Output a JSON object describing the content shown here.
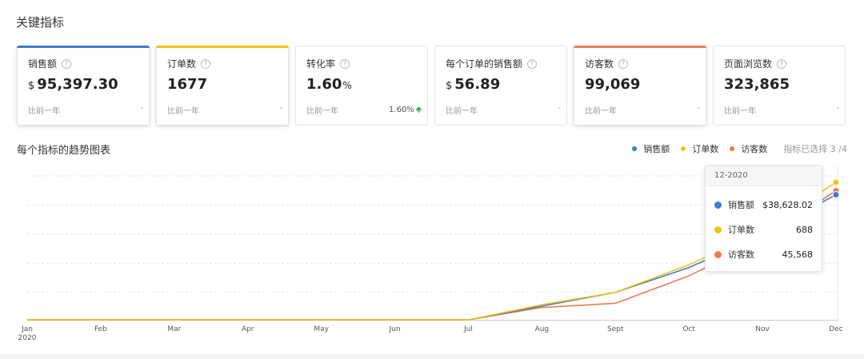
{
  "section_title": "关键指标",
  "cards": [
    {
      "label": "销售额",
      "prefix": "$",
      "value": "95,397.30",
      "suffix": "",
      "compare": "比前一年",
      "delta": "-",
      "accent": "#3f7dd1"
    },
    {
      "label": "订单数",
      "prefix": "",
      "value": "1677",
      "suffix": "",
      "compare": "比前一年",
      "delta": "-",
      "accent": "#f2c316"
    },
    {
      "label": "转化率",
      "prefix": "",
      "value": "1.60",
      "suffix": "%",
      "compare": "比前一年",
      "delta": "1.60%",
      "accent": ""
    },
    {
      "label": "每个订单的销售额",
      "prefix": "$",
      "value": "56.89",
      "suffix": "",
      "compare": "比前一年",
      "delta": "-",
      "accent": ""
    },
    {
      "label": "访客数",
      "prefix": "",
      "value": "99,069",
      "suffix": "",
      "compare": "比前一年",
      "delta": "-",
      "accent": "#ec7b54"
    },
    {
      "label": "页面浏览数",
      "prefix": "",
      "value": "323,865",
      "suffix": "",
      "compare": "比前一年",
      "delta": "-",
      "accent": ""
    }
  ],
  "help_icon": "question-circle-icon",
  "up_arrow_icon": "arrow-up-icon",
  "chart_title": "每个指标的趋势图表",
  "legend": {
    "items": [
      {
        "name": "销售额",
        "color": "#3f7dd1"
      },
      {
        "name": "订单数",
        "color": "#f2c316"
      },
      {
        "name": "访客数",
        "color": "#ec7b54"
      }
    ],
    "note": "指标已选择 3 /4"
  },
  "tooltip": {
    "title": "12-2020",
    "rows": [
      {
        "name": "销售额",
        "value": "$38,628.02",
        "color": "#3f7dd1"
      },
      {
        "name": "订单数",
        "value": "688",
        "color": "#f2c316"
      },
      {
        "name": "访客数",
        "value": "45,568",
        "color": "#ec7b54"
      }
    ]
  },
  "chart_data": {
    "type": "line",
    "x": [
      "Jan",
      "Feb",
      "Mar",
      "Apr",
      "May",
      "Jun",
      "Jul",
      "Aug",
      "Sept",
      "Oct",
      "Nov",
      "Dec"
    ],
    "year_label": "2020",
    "title": "每个指标的趋势图表",
    "grid": true,
    "y_axis_labels_shown": false,
    "normalized_to_peak": true,
    "series": [
      {
        "name": "销售额",
        "color": "#3f7dd1",
        "values": [
          0,
          0,
          0,
          0,
          0,
          0,
          0,
          0.1,
          0.2,
          0.38,
          0.62,
          0.91
        ]
      },
      {
        "name": "订单数",
        "color": "#f2c316",
        "values": [
          0,
          0,
          0,
          0,
          0,
          0,
          0,
          0.11,
          0.2,
          0.4,
          0.65,
          1.0
        ]
      },
      {
        "name": "访客数",
        "color": "#ec7b54",
        "values": [
          0,
          0,
          0,
          0,
          0,
          0,
          0,
          0.09,
          0.12,
          0.32,
          0.58,
          0.94
        ]
      }
    ]
  }
}
